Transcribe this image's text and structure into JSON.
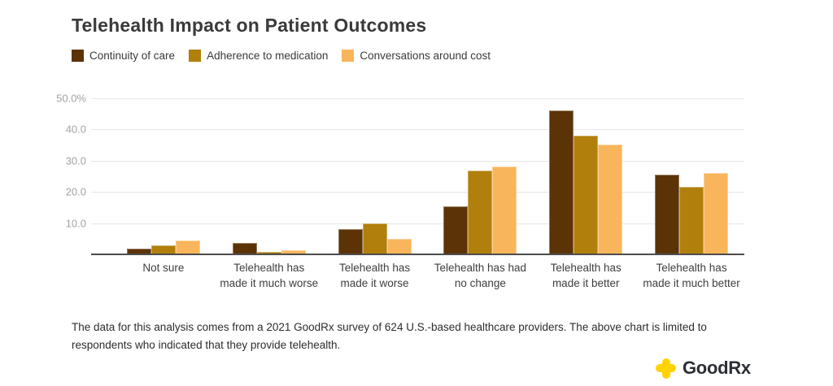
{
  "page": {
    "title": "Telehealth Impact on Patient Outcomes",
    "footer": "The data for this analysis comes from a 2021 GoodRx survey of 624 U.S.-based healthcare providers. The above chart is limited to respondents who indicated that they provide telehealth.",
    "logo_text": "GoodRx"
  },
  "colors": {
    "series_continuity": "#5c3307",
    "series_adherence": "#b17f0c",
    "series_conversations": "#f9b55c",
    "gridline": "#e7e7e7",
    "baseline": "#4d4d4d",
    "axis_tick_text": "#a4a4a4",
    "category_text": "#3e3e3e",
    "title_text": "#3a3a3a",
    "logo_yellow": "#ffd200",
    "logo_text_color": "#2b2e35"
  },
  "chart_data": {
    "type": "bar",
    "title": "Telehealth Impact on Patient Outcomes",
    "categories": [
      "Not sure",
      "Telehealth has made it much worse",
      "Telehealth has made it worse",
      "Telehealth has had no change",
      "Telehealth has made it better",
      "Telehealth has made it much better"
    ],
    "series": [
      {
        "name": "Continuity of care",
        "color": "#5c3307",
        "values": [
          1.8,
          3.6,
          8.0,
          15.3,
          46.0,
          25.5
        ]
      },
      {
        "name": "Adherence to medication",
        "color": "#b17f0c",
        "values": [
          2.8,
          0.8,
          10.0,
          26.8,
          38.0,
          21.7
        ]
      },
      {
        "name": "Conversations around cost",
        "color": "#f9b55c",
        "values": [
          4.4,
          1.2,
          5.0,
          28.0,
          35.2,
          26.0
        ]
      }
    ],
    "xlabel": "",
    "ylabel": "",
    "ylim": [
      0,
      50
    ],
    "yticks": [
      {
        "value": 10,
        "label": "10.0"
      },
      {
        "value": 20,
        "label": "20.0"
      },
      {
        "value": 30,
        "label": "30.0"
      },
      {
        "value": 40,
        "label": "40.0"
      },
      {
        "value": 50,
        "label": "50.0%"
      }
    ],
    "grid": true,
    "legend_position": "top-left"
  }
}
